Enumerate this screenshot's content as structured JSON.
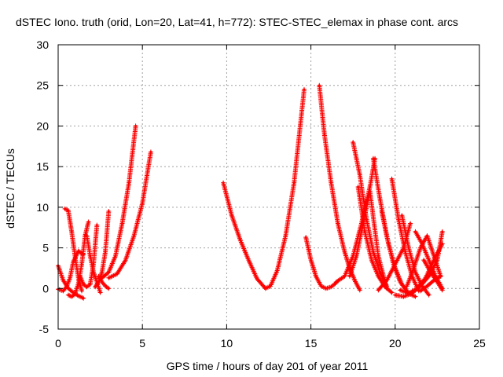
{
  "chart_data": {
    "type": "scatter",
    "title": "dSTEC Iono. truth (orid, Lon=20, Lat=41, h=772): STEC-STEC_elemax in phase cont. arcs",
    "xlabel": "GPS time / hours of day 201 of year 2011",
    "ylabel": "dSTEC  / TECUs",
    "xlim": [
      0,
      25
    ],
    "ylim": [
      -5,
      30
    ],
    "x_ticks": [
      "0",
      "5",
      "10",
      "15",
      "20",
      "25"
    ],
    "y_ticks": [
      "-5",
      "0",
      "5",
      "10",
      "15",
      "20",
      "25",
      "30"
    ],
    "grid": true,
    "marker": "plus",
    "color": "#ff0000",
    "series": [
      {
        "x": [
          0.0,
          0.3,
          0.6,
          0.9,
          1.2,
          1.5
        ],
        "y": [
          2.8,
          1.0,
          0.0,
          -0.5,
          -0.9,
          -1.2
        ]
      },
      {
        "x": [
          0.0,
          0.3,
          0.5,
          0.7,
          0.9,
          1.2,
          1.5
        ],
        "y": [
          -0.1,
          -0.3,
          0.2,
          1.3,
          3.3,
          4.6,
          4.2
        ]
      },
      {
        "x": [
          0.4,
          0.6,
          0.8,
          1.0,
          1.2,
          1.4
        ],
        "y": [
          9.8,
          9.6,
          7.0,
          4.0,
          1.3,
          -0.3
        ]
      },
      {
        "x": [
          0.6,
          0.8,
          1.0,
          1.2,
          1.4,
          1.6,
          1.8
        ],
        "y": [
          -0.8,
          -1.0,
          -0.7,
          0.6,
          3.0,
          6.5,
          8.2
        ]
      },
      {
        "x": [
          1.3,
          1.5,
          1.7,
          1.9,
          2.1,
          2.3
        ],
        "y": [
          1.5,
          0.5,
          0.2,
          0.5,
          3.0,
          7.8
        ]
      },
      {
        "x": [
          1.7,
          1.9,
          2.1,
          2.3,
          2.5
        ],
        "y": [
          6.5,
          4.0,
          2.0,
          0.8,
          -0.5
        ]
      },
      {
        "x": [
          2.2,
          2.4,
          2.6,
          2.8,
          3.0
        ],
        "y": [
          0.2,
          0.8,
          2.0,
          4.5,
          9.5
        ]
      },
      {
        "x": [
          2.4,
          2.6,
          2.8,
          3.0
        ],
        "y": [
          1.5,
          0.8,
          0.3,
          0.0
        ]
      },
      {
        "x": [
          2.6,
          3.0,
          3.4,
          3.8,
          4.2,
          4.6
        ],
        "y": [
          1.3,
          2.0,
          4.0,
          8.0,
          13.0,
          20.0
        ]
      },
      {
        "x": [
          3.0,
          3.5,
          4.0,
          4.5,
          5.0,
          5.5
        ],
        "y": [
          1.3,
          1.8,
          3.5,
          6.5,
          10.5,
          16.8
        ]
      },
      {
        "x": [
          9.8,
          10.3,
          10.8,
          11.3,
          11.8,
          12.3,
          12.6,
          13.0,
          13.5,
          14.0,
          14.6
        ],
        "y": [
          13.0,
          9.0,
          6.0,
          3.5,
          1.2,
          0.0,
          0.3,
          2.2,
          6.5,
          13.0,
          24.5
        ]
      },
      {
        "x": [
          14.7,
          15.0,
          15.3,
          15.6,
          15.9,
          16.2,
          16.5
        ],
        "y": [
          6.3,
          3.5,
          1.5,
          0.3,
          0.0,
          0.2,
          0.7
        ]
      },
      {
        "x": [
          15.5,
          15.8,
          16.2,
          16.6,
          17.0,
          17.3,
          17.6,
          17.9
        ],
        "y": [
          25.0,
          19.0,
          13.0,
          8.0,
          4.5,
          2.5,
          1.0,
          -0.2
        ]
      },
      {
        "x": [
          16.5,
          17.0,
          17.5,
          18.0,
          18.5,
          18.8
        ],
        "y": [
          0.8,
          1.5,
          4.0,
          8.0,
          12.5,
          16.0
        ]
      },
      {
        "x": [
          17.5,
          17.9,
          18.3,
          18.7,
          19.1,
          19.5
        ],
        "y": [
          18.0,
          14.0,
          8.5,
          4.5,
          2.0,
          0.3
        ]
      },
      {
        "x": [
          17.3,
          17.7,
          18.1,
          18.5,
          19.0,
          19.5
        ],
        "y": [
          1.5,
          4.0,
          8.0,
          12.0,
          4.0,
          0.0
        ]
      },
      {
        "x": [
          17.8,
          18.2,
          18.6,
          19.0,
          19.4,
          19.8
        ],
        "y": [
          12.5,
          7.0,
          3.5,
          1.5,
          0.2,
          -0.5
        ]
      },
      {
        "x": [
          18.7,
          19.1,
          19.5,
          19.9,
          20.3,
          20.7
        ],
        "y": [
          16.0,
          11.0,
          6.5,
          3.0,
          0.8,
          -0.3
        ]
      },
      {
        "x": [
          19.2,
          19.6,
          20.0,
          20.4,
          20.8,
          21.2
        ],
        "y": [
          9.5,
          5.5,
          2.5,
          0.5,
          -0.6,
          -1.0
        ]
      },
      {
        "x": [
          19.0,
          19.5,
          20.0,
          20.5,
          20.9
        ],
        "y": [
          -0.2,
          1.0,
          3.0,
          5.0,
          8.0
        ]
      },
      {
        "x": [
          19.8,
          20.2,
          20.6,
          21.0,
          21.4
        ],
        "y": [
          13.5,
          8.5,
          4.5,
          1.5,
          -0.3
        ]
      },
      {
        "x": [
          20.4,
          20.8,
          21.2,
          21.6,
          22.0
        ],
        "y": [
          9.0,
          5.0,
          2.0,
          0.3,
          -0.8
        ]
      },
      {
        "x": [
          20.0,
          20.5,
          21.0,
          21.5,
          22.0,
          22.5,
          22.8
        ],
        "y": [
          -0.8,
          -1.0,
          -0.6,
          0.3,
          1.5,
          3.5,
          7.0
        ]
      },
      {
        "x": [
          20.3,
          20.8,
          21.3,
          21.8,
          22.3,
          22.8
        ],
        "y": [
          -0.2,
          -0.6,
          0.0,
          1.3,
          3.5,
          5.5
        ]
      },
      {
        "x": [
          20.7,
          21.1,
          21.5,
          21.9,
          22.3,
          22.7
        ],
        "y": [
          0.3,
          2.5,
          5.0,
          6.5,
          4.0,
          1.5
        ]
      },
      {
        "x": [
          21.2,
          21.6,
          22.0,
          22.4,
          22.8
        ],
        "y": [
          7.0,
          5.5,
          3.5,
          1.5,
          0.0
        ]
      },
      {
        "x": [
          21.5,
          21.9,
          22.3,
          22.7
        ],
        "y": [
          -0.3,
          0.3,
          1.0,
          1.5
        ]
      },
      {
        "x": [
          21.7,
          22.1,
          22.5,
          22.8
        ],
        "y": [
          3.5,
          2.0,
          0.8,
          -0.2
        ]
      }
    ]
  }
}
